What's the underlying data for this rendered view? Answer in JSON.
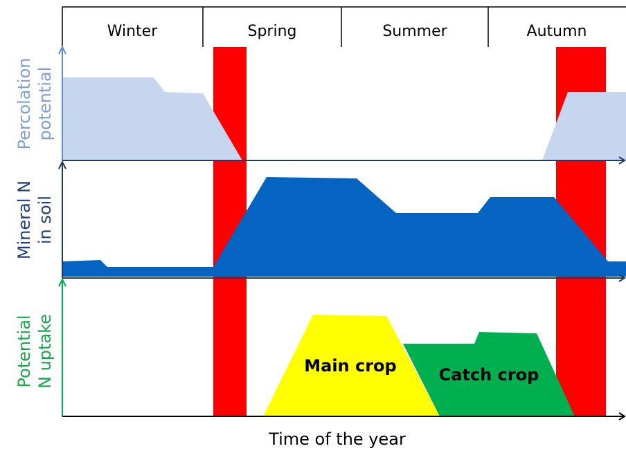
{
  "header": {
    "seasons": [
      "Winter",
      "Spring",
      "Summer",
      "Autumn"
    ]
  },
  "panels": [
    {
      "label_lines": [
        "Percolation",
        "potential"
      ]
    },
    {
      "label_lines": [
        "Mineral N",
        "in soil"
      ]
    },
    {
      "label_lines": [
        "Potential",
        "N uptake"
      ]
    }
  ],
  "crops": {
    "main": "Main crop",
    "catch": "Catch crop"
  },
  "x_axis_label": "Time of the year"
}
